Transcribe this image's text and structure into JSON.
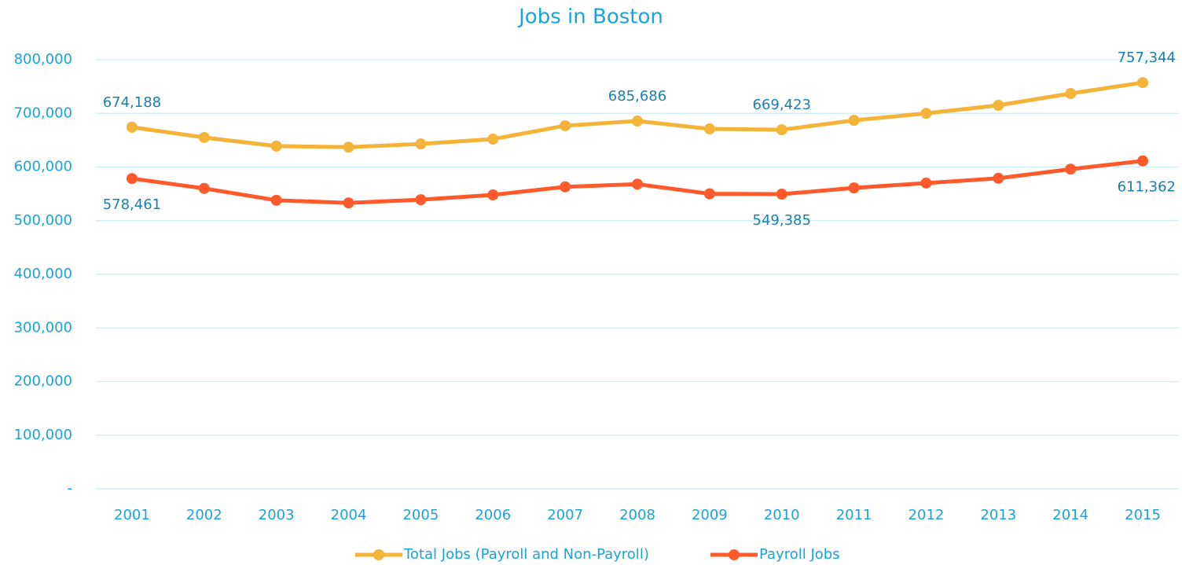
{
  "chart_data": {
    "type": "line",
    "title": "Jobs in Boston",
    "categories": [
      "2001",
      "2002",
      "2003",
      "2004",
      "2005",
      "2006",
      "2007",
      "2008",
      "2009",
      "2010",
      "2011",
      "2012",
      "2013",
      "2014",
      "2015"
    ],
    "series": [
      {
        "name": "Total Jobs (Payroll and Non-Payroll)",
        "color": "#f4b43a",
        "values": [
          674188,
          655000,
          639000,
          637000,
          643000,
          652000,
          677000,
          685686,
          671000,
          669423,
          687000,
          700000,
          715000,
          737000,
          757344
        ],
        "value_labels": [
          "674,188",
          null,
          null,
          null,
          null,
          null,
          null,
          "685,686",
          null,
          "669,423",
          null,
          null,
          null,
          null,
          "757,344"
        ]
      },
      {
        "name": "Payroll Jobs",
        "color": "#ff5a2b",
        "values": [
          578461,
          560000,
          538000,
          533000,
          539000,
          548000,
          563000,
          568000,
          550000,
          549385,
          561000,
          570000,
          579000,
          596000,
          611362
        ],
        "value_labels": [
          "578,461",
          null,
          null,
          null,
          null,
          null,
          null,
          null,
          null,
          "549,385",
          null,
          null,
          null,
          null,
          "611,362"
        ]
      }
    ],
    "ylim": [
      0,
      800000
    ],
    "yticks": [
      {
        "value": 0,
        "label": "-"
      },
      {
        "value": 100000,
        "label": "100,000"
      },
      {
        "value": 200000,
        "label": "200,000"
      },
      {
        "value": 300000,
        "label": "300,000"
      },
      {
        "value": 400000,
        "label": "400,000"
      },
      {
        "value": 500000,
        "label": "500,000"
      },
      {
        "value": 600000,
        "label": "600,000"
      },
      {
        "value": 700000,
        "label": "700,000"
      },
      {
        "value": 800000,
        "label": "800,000"
      }
    ],
    "grid": true,
    "legend": "bottom"
  }
}
